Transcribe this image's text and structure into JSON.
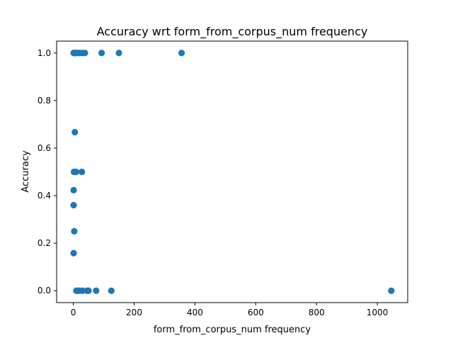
{
  "chart_data": {
    "type": "scatter",
    "title": "Accuracy wrt form_from_corpus_num frequency",
    "xlabel": "form_from_corpus_num frequency",
    "ylabel": "Accuracy",
    "xlim": [
      -55,
      1100
    ],
    "ylim": [
      -0.05,
      1.05
    ],
    "xticks": [
      0,
      200,
      400,
      600,
      800,
      1000
    ],
    "xtick_labels": [
      "0",
      "200",
      "400",
      "600",
      "800",
      "1000"
    ],
    "yticks": [
      0.0,
      0.2,
      0.4,
      0.6,
      0.8,
      1.0
    ],
    "ytick_labels": [
      "0.0",
      "0.2",
      "0.4",
      "0.6",
      "0.8",
      "1.0"
    ],
    "grid": false,
    "marker_color": "#1f77b4",
    "points": [
      {
        "x": 1,
        "y": 1.0
      },
      {
        "x": 3,
        "y": 1.0
      },
      {
        "x": 5,
        "y": 1.0
      },
      {
        "x": 8,
        "y": 1.0
      },
      {
        "x": 12,
        "y": 1.0
      },
      {
        "x": 18,
        "y": 1.0
      },
      {
        "x": 22,
        "y": 1.0
      },
      {
        "x": 30,
        "y": 1.0
      },
      {
        "x": 38,
        "y": 1.0
      },
      {
        "x": 93,
        "y": 1.0
      },
      {
        "x": 150,
        "y": 1.0
      },
      {
        "x": 356,
        "y": 1.0
      },
      {
        "x": 5,
        "y": 0.667
      },
      {
        "x": 2,
        "y": 0.5
      },
      {
        "x": 6,
        "y": 0.5
      },
      {
        "x": 9,
        "y": 0.5
      },
      {
        "x": 28,
        "y": 0.5
      },
      {
        "x": 1,
        "y": 0.423
      },
      {
        "x": 1,
        "y": 0.36
      },
      {
        "x": 3,
        "y": 0.25
      },
      {
        "x": 1,
        "y": 0.158
      },
      {
        "x": 10,
        "y": 0.0
      },
      {
        "x": 14,
        "y": 0.0
      },
      {
        "x": 20,
        "y": 0.0
      },
      {
        "x": 30,
        "y": 0.0
      },
      {
        "x": 45,
        "y": 0.0
      },
      {
        "x": 50,
        "y": 0.0
      },
      {
        "x": 75,
        "y": 0.0
      },
      {
        "x": 125,
        "y": 0.0
      },
      {
        "x": 1046,
        "y": 0.0
      }
    ]
  }
}
